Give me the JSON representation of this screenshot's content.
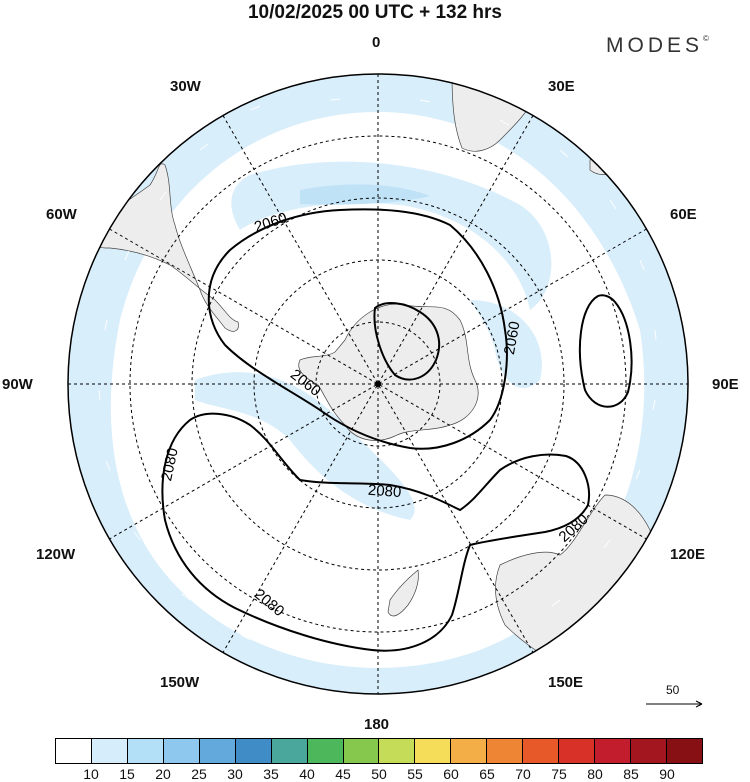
{
  "title": "10/02/2025  00 UTC  + 132 hrs",
  "brand": "MODES",
  "brand_mark": "©",
  "longitude_labels": {
    "top": "0",
    "bottom": "180",
    "left": "90W",
    "right": "90E",
    "upper_left_1": "30W",
    "upper_left_2": "60W",
    "upper_right_1": "30E",
    "upper_right_2": "60E",
    "lower_left_1": "120W",
    "lower_left_2": "150W",
    "lower_right_1": "120E",
    "lower_right_2": "150E"
  },
  "contour_labels": {
    "c1": "2060",
    "c2": "2060",
    "c3": "2060",
    "c4": "2080",
    "c5": "2080",
    "c6": "2080",
    "c7": "2080"
  },
  "reference_vector": "50",
  "icons": [
    "wind-vector-arrow-icon"
  ],
  "colorbar": {
    "ticks": [
      "10",
      "15",
      "20",
      "25",
      "30",
      "35",
      "40",
      "45",
      "50",
      "55",
      "60",
      "65",
      "70",
      "75",
      "80",
      "85",
      "90"
    ],
    "colors": [
      "#ffffff",
      "#d6eefb",
      "#b4e0f7",
      "#8ec8ee",
      "#63a9dc",
      "#3f8cc6",
      "#4aa79b",
      "#4cb85b",
      "#86c84e",
      "#c4dc57",
      "#f5dd59",
      "#f3ae47",
      "#ee8535",
      "#e8592a",
      "#d83228",
      "#c21d2d",
      "#a4161f",
      "#861014"
    ]
  },
  "colors": {
    "land": "#ededed",
    "jet_shade": "#d9eefb",
    "jet_shade_strong": "#bfe2f7",
    "contour": "#000000",
    "grid": "#000000"
  }
}
